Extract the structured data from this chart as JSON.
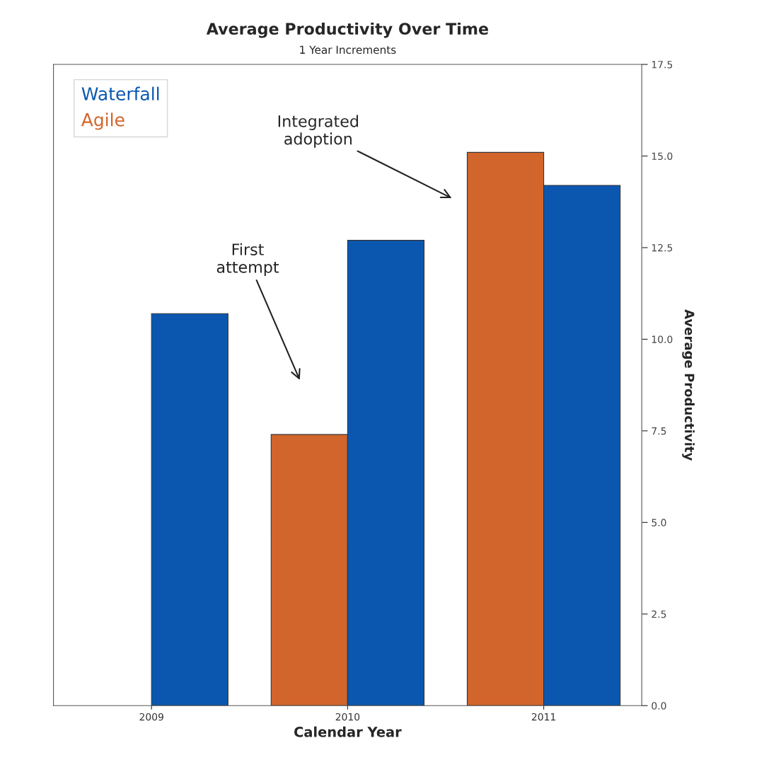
{
  "chart_data": {
    "type": "bar",
    "title": "Average Productivity Over Time",
    "subtitle": "1 Year Increments",
    "xlabel": "Calendar Year",
    "ylabel": "Average Productivity",
    "categories": [
      "2009",
      "2010",
      "2011"
    ],
    "series": [
      {
        "name": "Agile",
        "color": "#d2652b",
        "values": [
          null,
          7.4,
          15.1
        ]
      },
      {
        "name": "Waterfall",
        "color": "#0b57b0",
        "values": [
          10.7,
          12.7,
          14.2
        ]
      }
    ],
    "ylim": [
      0,
      17.5
    ],
    "yticks": [
      {
        "value": 0,
        "label": "0.0"
      },
      2.5,
      {
        "value": 5,
        "label": "5.0"
      },
      7.5,
      {
        "value": 10,
        "label": "10.0"
      },
      12.5,
      {
        "value": 15,
        "label": "15.0"
      },
      17.5
    ],
    "annotations": [
      "First\nattempt",
      "Integrated\nadoption"
    ],
    "legend": "top left",
    "grid": false
  }
}
